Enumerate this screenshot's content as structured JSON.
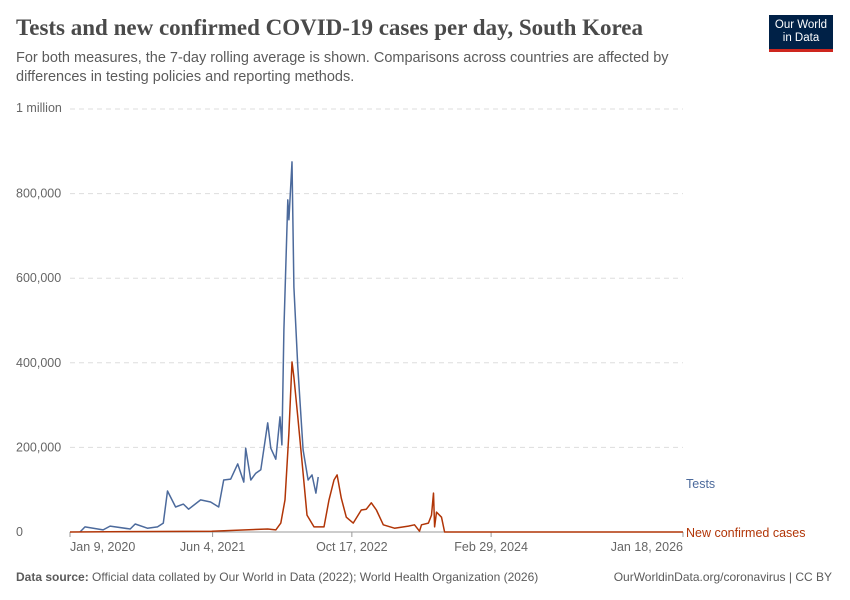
{
  "header": {
    "title": "Tests and new confirmed COVID-19 cases per day, South Korea",
    "subtitle": "For both measures, the 7-day rolling average is shown. Comparisons across countries are affected by differences in testing policies and reporting methods.",
    "logo": "Our World in Data"
  },
  "footer": {
    "source_label": "Data source:",
    "source_text": "Official data collated by Our World in Data (2022); World Health Organization (2026)",
    "link": "OurWorldinData.org/coronavirus | CC BY"
  },
  "chart_data": {
    "type": "line",
    "title": "Tests and new confirmed COVID-19 cases per day, South Korea",
    "xlim": [
      "2020-01-09",
      "2026-01-18"
    ],
    "ylim": [
      0,
      1000000
    ],
    "grid": true,
    "x_ticks": [
      "Jan 9, 2020",
      "Jun 4, 2021",
      "Oct 17, 2022",
      "Feb 29, 2024",
      "Jan 18, 2026"
    ],
    "x_tick_dates": [
      "2020-01-09",
      "2021-06-04",
      "2022-10-17",
      "2024-02-29",
      "2026-01-18"
    ],
    "y_ticks": [
      {
        "v": 0,
        "label": "0"
      },
      {
        "v": 200000,
        "label": "200,000"
      },
      {
        "v": 400000,
        "label": "400,000"
      },
      {
        "v": 600000,
        "label": "600,000"
      },
      {
        "v": 800000,
        "label": "800,000"
      },
      {
        "v": 1000000,
        "label": "1 million"
      }
    ],
    "legend": "right-end labels",
    "series": [
      {
        "name": "Tests",
        "color": "#4c6a9c",
        "points": [
          [
            "2020-02-14",
            0
          ],
          [
            "2020-03-03",
            12000
          ],
          [
            "2020-05-07",
            5000
          ],
          [
            "2020-06-01",
            14000
          ],
          [
            "2020-08-12",
            7000
          ],
          [
            "2020-08-30",
            19000
          ],
          [
            "2020-10-13",
            9000
          ],
          [
            "2020-11-18",
            12000
          ],
          [
            "2020-12-09",
            21000
          ],
          [
            "2020-12-24",
            97000
          ],
          [
            "2021-01-22",
            59000
          ],
          [
            "2021-02-19",
            66000
          ],
          [
            "2021-03-10",
            54000
          ],
          [
            "2021-04-22",
            76000
          ],
          [
            "2021-05-28",
            71000
          ],
          [
            "2021-06-26",
            59000
          ],
          [
            "2021-07-14",
            123000
          ],
          [
            "2021-08-08",
            125000
          ],
          [
            "2021-09-02",
            161000
          ],
          [
            "2021-09-24",
            118000
          ],
          [
            "2021-10-01",
            198000
          ],
          [
            "2021-10-19",
            123000
          ],
          [
            "2021-11-06",
            139000
          ],
          [
            "2021-11-24",
            147000
          ],
          [
            "2021-12-19",
            258000
          ],
          [
            "2021-12-30",
            198000
          ],
          [
            "2022-01-17",
            172000
          ],
          [
            "2022-02-01",
            272000
          ],
          [
            "2022-02-08",
            206000
          ],
          [
            "2022-02-15",
            478000
          ],
          [
            "2022-03-01",
            785000
          ],
          [
            "2022-03-05",
            738000
          ],
          [
            "2022-03-16",
            875000
          ],
          [
            "2022-03-23",
            579000
          ],
          [
            "2022-04-06",
            390000
          ],
          [
            "2022-04-25",
            194000
          ],
          [
            "2022-05-13",
            123000
          ],
          [
            "2022-05-27",
            135000
          ],
          [
            "2022-06-10",
            92000
          ],
          [
            "2022-06-18",
            130000
          ]
        ]
      },
      {
        "name": "New confirmed cases",
        "color": "#b13507",
        "points": [
          [
            "2020-01-09",
            0
          ],
          [
            "2021-06-01",
            2000
          ],
          [
            "2021-12-19",
            7000
          ],
          [
            "2022-01-17",
            5000
          ],
          [
            "2022-02-04",
            21000
          ],
          [
            "2022-02-19",
            76000
          ],
          [
            "2022-03-05",
            234000
          ],
          [
            "2022-03-16",
            402000
          ],
          [
            "2022-03-23",
            366000
          ],
          [
            "2022-04-06",
            272000
          ],
          [
            "2022-04-25",
            139000
          ],
          [
            "2022-05-09",
            40000
          ],
          [
            "2022-06-03",
            12000
          ],
          [
            "2022-07-09",
            12000
          ],
          [
            "2022-07-27",
            76000
          ],
          [
            "2022-08-14",
            123000
          ],
          [
            "2022-08-25",
            135000
          ],
          [
            "2022-09-09",
            80000
          ],
          [
            "2022-09-27",
            35000
          ],
          [
            "2022-10-22",
            21000
          ],
          [
            "2022-11-20",
            52000
          ],
          [
            "2022-12-08",
            54000
          ],
          [
            "2022-12-26",
            69000
          ],
          [
            "2023-01-13",
            52000
          ],
          [
            "2023-02-07",
            17000
          ],
          [
            "2023-03-19",
            9000
          ],
          [
            "2023-05-08",
            14000
          ],
          [
            "2023-05-30",
            17000
          ],
          [
            "2023-06-17",
            2000
          ],
          [
            "2023-06-24",
            17000
          ],
          [
            "2023-07-19",
            21000
          ],
          [
            "2023-07-30",
            40000
          ],
          [
            "2023-08-06",
            92000
          ],
          [
            "2023-08-10",
            12000
          ],
          [
            "2023-08-17",
            47000
          ],
          [
            "2023-09-04",
            35000
          ],
          [
            "2023-09-15",
            0
          ],
          [
            "2026-01-18",
            0
          ]
        ]
      }
    ]
  }
}
